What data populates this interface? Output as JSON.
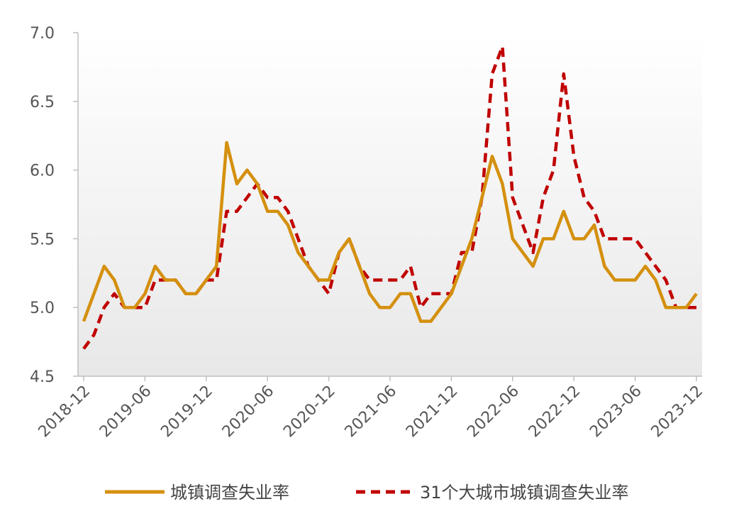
{
  "chart_data": {
    "type": "line",
    "title": "",
    "xlabel": "",
    "ylabel": "",
    "ylim": [
      4.5,
      7.0
    ],
    "yticks": [
      "4.5",
      "5.0",
      "5.5",
      "6.0",
      "6.5",
      "7.0"
    ],
    "xticks": [
      "2018-12",
      "2019-06",
      "2019-12",
      "2020-06",
      "2020-12",
      "2021-06",
      "2021-12",
      "2022-06",
      "2022-12",
      "2023-06",
      "2023-12"
    ],
    "x": [
      "2018-12",
      "2019-01",
      "2019-02",
      "2019-03",
      "2019-04",
      "2019-05",
      "2019-06",
      "2019-07",
      "2019-08",
      "2019-09",
      "2019-10",
      "2019-11",
      "2019-12",
      "2020-01",
      "2020-02",
      "2020-03",
      "2020-04",
      "2020-05",
      "2020-06",
      "2020-07",
      "2020-08",
      "2020-09",
      "2020-10",
      "2020-11",
      "2020-12",
      "2021-01",
      "2021-02",
      "2021-03",
      "2021-04",
      "2021-05",
      "2021-06",
      "2021-07",
      "2021-08",
      "2021-09",
      "2021-10",
      "2021-11",
      "2021-12",
      "2022-01",
      "2022-02",
      "2022-03",
      "2022-04",
      "2022-05",
      "2022-06",
      "2022-07",
      "2022-08",
      "2022-09",
      "2022-10",
      "2022-11",
      "2022-12",
      "2023-01",
      "2023-02",
      "2023-03",
      "2023-04",
      "2023-05",
      "2023-06",
      "2023-07",
      "2023-08",
      "2023-09",
      "2023-10",
      "2023-11",
      "2023-12"
    ],
    "grid": false,
    "legend_position": "bottom",
    "series": [
      {
        "name": "城镇调查失业率",
        "color": "#D4900E",
        "style": "solid",
        "values": [
          4.9,
          5.1,
          5.3,
          5.2,
          5.0,
          5.0,
          5.1,
          5.3,
          5.2,
          5.2,
          5.1,
          5.1,
          5.2,
          5.3,
          6.2,
          5.9,
          6.0,
          5.9,
          5.7,
          5.7,
          5.6,
          5.4,
          5.3,
          5.2,
          5.2,
          5.4,
          5.5,
          5.3,
          5.1,
          5.0,
          5.0,
          5.1,
          5.1,
          4.9,
          4.9,
          5.0,
          5.1,
          5.3,
          5.5,
          5.8,
          6.1,
          5.9,
          5.5,
          5.4,
          5.3,
          5.5,
          5.5,
          5.7,
          5.5,
          5.5,
          5.6,
          5.3,
          5.2,
          5.2,
          5.2,
          5.3,
          5.2,
          5.0,
          5.0,
          5.0,
          5.1
        ]
      },
      {
        "name": "31个大城市城镇调查失业率",
        "color": "#C00000",
        "style": "dashed",
        "values": [
          4.7,
          4.8,
          5.0,
          5.1,
          5.0,
          5.0,
          5.0,
          5.2,
          5.2,
          5.2,
          5.1,
          5.1,
          5.2,
          5.2,
          5.7,
          5.7,
          5.8,
          5.9,
          5.8,
          5.8,
          5.7,
          5.5,
          5.3,
          5.2,
          5.1,
          5.4,
          5.5,
          5.3,
          5.2,
          5.2,
          5.2,
          5.2,
          5.3,
          5.0,
          5.1,
          5.1,
          5.1,
          5.4,
          5.4,
          5.8,
          6.7,
          6.9,
          5.8,
          5.6,
          5.4,
          5.8,
          6.0,
          6.7,
          6.1,
          5.8,
          5.7,
          5.5,
          5.5,
          5.5,
          5.5,
          5.4,
          5.3,
          5.2,
          5.0,
          5.0,
          5.0
        ]
      }
    ]
  }
}
